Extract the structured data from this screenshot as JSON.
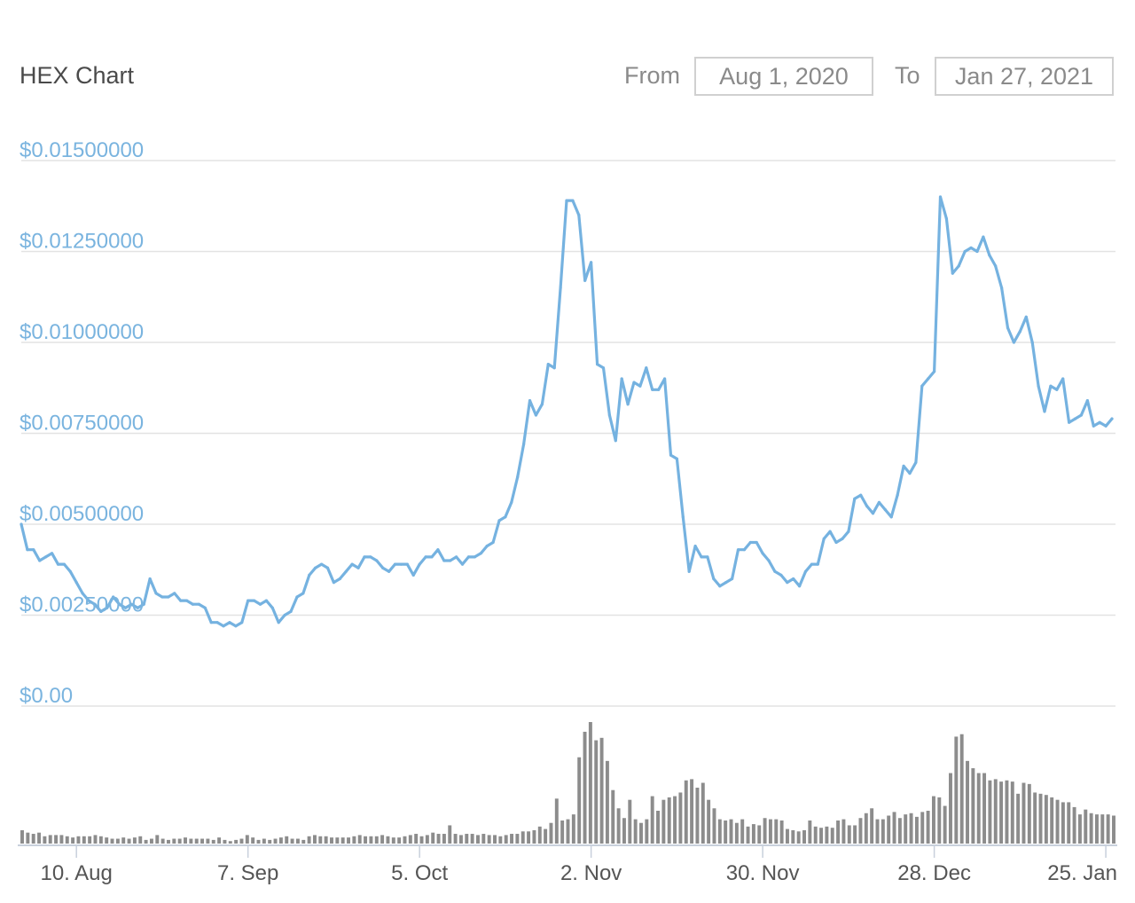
{
  "header": {
    "title": "HEX Chart",
    "from_label": "From",
    "from_value": "Aug 1, 2020",
    "to_label": "To",
    "to_value": "Jan 27, 2021"
  },
  "colors": {
    "price_line": "#75b2e0",
    "volume_bar": "#8c8c8c",
    "grid": "#e3e3e3",
    "y_label": "#7ab4df",
    "x_label": "#555555"
  },
  "chart_data": {
    "type": "line",
    "title": "HEX Chart",
    "ylim": [
      0,
      0.015
    ],
    "y_ticks": [
      0,
      0.0025,
      0.005,
      0.0075,
      0.01,
      0.0125,
      0.015
    ],
    "y_tick_labels": [
      "$0.00",
      "$0.00250000",
      "$0.00500000",
      "$0.00750000",
      "$0.01000000",
      "$0.01250000",
      "$0.01500000"
    ],
    "x_range": [
      "2020-08-01",
      "2021-01-27"
    ],
    "x_ticks": [
      "2020-08-10",
      "2020-09-07",
      "2020-10-05",
      "2020-11-02",
      "2020-11-30",
      "2020-12-28",
      "2021-01-25"
    ],
    "x_tick_labels": [
      "10. Aug",
      "7. Sep",
      "5. Oct",
      "2. Nov",
      "30. Nov",
      "28. Dec",
      "25. Jan"
    ],
    "grid": true,
    "series": [
      {
        "type": "line",
        "points": [
          [
            "2020-08-01",
            0.005
          ],
          [
            "2020-08-02",
            0.0043
          ],
          [
            "2020-08-03",
            0.0043
          ],
          [
            "2020-08-04",
            0.004
          ],
          [
            "2020-08-05",
            0.0041
          ],
          [
            "2020-08-06",
            0.0042
          ],
          [
            "2020-08-07",
            0.0039
          ],
          [
            "2020-08-08",
            0.0039
          ],
          [
            "2020-08-09",
            0.0037
          ],
          [
            "2020-08-10",
            0.0034
          ],
          [
            "2020-08-11",
            0.0031
          ],
          [
            "2020-08-12",
            0.0029
          ],
          [
            "2020-08-13",
            0.0028
          ],
          [
            "2020-08-14",
            0.0026
          ],
          [
            "2020-08-15",
            0.0027
          ],
          [
            "2020-08-16",
            0.003
          ],
          [
            "2020-08-17",
            0.0028
          ],
          [
            "2020-08-18",
            0.0027
          ],
          [
            "2020-08-19",
            0.0028
          ],
          [
            "2020-08-20",
            0.0027
          ],
          [
            "2020-08-21",
            0.0028
          ],
          [
            "2020-08-22",
            0.0035
          ],
          [
            "2020-08-23",
            0.0031
          ],
          [
            "2020-08-24",
            0.003
          ],
          [
            "2020-08-25",
            0.003
          ],
          [
            "2020-08-26",
            0.0031
          ],
          [
            "2020-08-27",
            0.0029
          ],
          [
            "2020-08-28",
            0.0029
          ],
          [
            "2020-08-29",
            0.0028
          ],
          [
            "2020-08-30",
            0.0028
          ],
          [
            "2020-08-31",
            0.0027
          ],
          [
            "2020-09-01",
            0.0023
          ],
          [
            "2020-09-02",
            0.0023
          ],
          [
            "2020-09-03",
            0.0022
          ],
          [
            "2020-09-04",
            0.0023
          ],
          [
            "2020-09-05",
            0.0022
          ],
          [
            "2020-09-06",
            0.0023
          ],
          [
            "2020-09-07",
            0.0029
          ],
          [
            "2020-09-08",
            0.0029
          ],
          [
            "2020-09-09",
            0.0028
          ],
          [
            "2020-09-10",
            0.0029
          ],
          [
            "2020-09-11",
            0.0027
          ],
          [
            "2020-09-12",
            0.0023
          ],
          [
            "2020-09-13",
            0.0025
          ],
          [
            "2020-09-14",
            0.0026
          ],
          [
            "2020-09-15",
            0.003
          ],
          [
            "2020-09-16",
            0.0031
          ],
          [
            "2020-09-17",
            0.0036
          ],
          [
            "2020-09-18",
            0.0038
          ],
          [
            "2020-09-19",
            0.0039
          ],
          [
            "2020-09-20",
            0.0038
          ],
          [
            "2020-09-21",
            0.0034
          ],
          [
            "2020-09-22",
            0.0035
          ],
          [
            "2020-09-23",
            0.0037
          ],
          [
            "2020-09-24",
            0.0039
          ],
          [
            "2020-09-25",
            0.0038
          ],
          [
            "2020-09-26",
            0.0041
          ],
          [
            "2020-09-27",
            0.0041
          ],
          [
            "2020-09-28",
            0.004
          ],
          [
            "2020-09-29",
            0.0038
          ],
          [
            "2020-09-30",
            0.0037
          ],
          [
            "2020-10-01",
            0.0039
          ],
          [
            "2020-10-02",
            0.0039
          ],
          [
            "2020-10-03",
            0.0039
          ],
          [
            "2020-10-04",
            0.0036
          ],
          [
            "2020-10-05",
            0.0039
          ],
          [
            "2020-10-06",
            0.0041
          ],
          [
            "2020-10-07",
            0.0041
          ],
          [
            "2020-10-08",
            0.0043
          ],
          [
            "2020-10-09",
            0.004
          ],
          [
            "2020-10-10",
            0.004
          ],
          [
            "2020-10-11",
            0.0041
          ],
          [
            "2020-10-12",
            0.0039
          ],
          [
            "2020-10-13",
            0.0041
          ],
          [
            "2020-10-14",
            0.0041
          ],
          [
            "2020-10-15",
            0.0042
          ],
          [
            "2020-10-16",
            0.0044
          ],
          [
            "2020-10-17",
            0.0045
          ],
          [
            "2020-10-18",
            0.0051
          ],
          [
            "2020-10-19",
            0.0052
          ],
          [
            "2020-10-20",
            0.0056
          ],
          [
            "2020-10-21",
            0.0063
          ],
          [
            "2020-10-22",
            0.0072
          ],
          [
            "2020-10-23",
            0.0084
          ],
          [
            "2020-10-24",
            0.008
          ],
          [
            "2020-10-25",
            0.0083
          ],
          [
            "2020-10-26",
            0.0094
          ],
          [
            "2020-10-27",
            0.0093
          ],
          [
            "2020-10-28",
            0.0115
          ],
          [
            "2020-10-29",
            0.0139
          ],
          [
            "2020-10-30",
            0.0139
          ],
          [
            "2020-10-31",
            0.0135
          ],
          [
            "2020-11-01",
            0.0117
          ],
          [
            "2020-11-02",
            0.0122
          ],
          [
            "2020-11-03",
            0.0094
          ],
          [
            "2020-11-04",
            0.0093
          ],
          [
            "2020-11-05",
            0.008
          ],
          [
            "2020-11-06",
            0.0073
          ],
          [
            "2020-11-07",
            0.009
          ],
          [
            "2020-11-08",
            0.0083
          ],
          [
            "2020-11-09",
            0.0089
          ],
          [
            "2020-11-10",
            0.0088
          ],
          [
            "2020-11-11",
            0.0093
          ],
          [
            "2020-11-12",
            0.0087
          ],
          [
            "2020-11-13",
            0.0087
          ],
          [
            "2020-11-14",
            0.009
          ],
          [
            "2020-11-15",
            0.0069
          ],
          [
            "2020-11-16",
            0.0068
          ],
          [
            "2020-11-17",
            0.0052
          ],
          [
            "2020-11-18",
            0.0037
          ],
          [
            "2020-11-19",
            0.0044
          ],
          [
            "2020-11-20",
            0.0041
          ],
          [
            "2020-11-21",
            0.0041
          ],
          [
            "2020-11-22",
            0.0035
          ],
          [
            "2020-11-23",
            0.0033
          ],
          [
            "2020-11-24",
            0.0034
          ],
          [
            "2020-11-25",
            0.0035
          ],
          [
            "2020-11-26",
            0.0043
          ],
          [
            "2020-11-27",
            0.0043
          ],
          [
            "2020-11-28",
            0.0045
          ],
          [
            "2020-11-29",
            0.0045
          ],
          [
            "2020-11-30",
            0.0042
          ],
          [
            "2020-12-01",
            0.004
          ],
          [
            "2020-12-02",
            0.0037
          ],
          [
            "2020-12-03",
            0.0036
          ],
          [
            "2020-12-04",
            0.0034
          ],
          [
            "2020-12-05",
            0.0035
          ],
          [
            "2020-12-06",
            0.0033
          ],
          [
            "2020-12-07",
            0.0037
          ],
          [
            "2020-12-08",
            0.0039
          ],
          [
            "2020-12-09",
            0.0039
          ],
          [
            "2020-12-10",
            0.0046
          ],
          [
            "2020-12-11",
            0.0048
          ],
          [
            "2020-12-12",
            0.0045
          ],
          [
            "2020-12-13",
            0.0046
          ],
          [
            "2020-12-14",
            0.0048
          ],
          [
            "2020-12-15",
            0.0057
          ],
          [
            "2020-12-16",
            0.0058
          ],
          [
            "2020-12-17",
            0.0055
          ],
          [
            "2020-12-18",
            0.0053
          ],
          [
            "2020-12-19",
            0.0056
          ],
          [
            "2020-12-20",
            0.0054
          ],
          [
            "2020-12-21",
            0.0052
          ],
          [
            "2020-12-22",
            0.0058
          ],
          [
            "2020-12-23",
            0.0066
          ],
          [
            "2020-12-24",
            0.0064
          ],
          [
            "2020-12-25",
            0.0067
          ],
          [
            "2020-12-26",
            0.0088
          ],
          [
            "2020-12-27",
            0.009
          ],
          [
            "2020-12-28",
            0.0092
          ],
          [
            "2020-12-29",
            0.014
          ],
          [
            "2020-12-30",
            0.0134
          ],
          [
            "2020-12-31",
            0.0119
          ],
          [
            "2021-01-01",
            0.0121
          ],
          [
            "2021-01-02",
            0.0125
          ],
          [
            "2021-01-03",
            0.0126
          ],
          [
            "2021-01-04",
            0.0125
          ],
          [
            "2021-01-05",
            0.0129
          ],
          [
            "2021-01-06",
            0.0124
          ],
          [
            "2021-01-07",
            0.0121
          ],
          [
            "2021-01-08",
            0.0115
          ],
          [
            "2021-01-09",
            0.0104
          ],
          [
            "2021-01-10",
            0.01
          ],
          [
            "2021-01-11",
            0.0103
          ],
          [
            "2021-01-12",
            0.0107
          ],
          [
            "2021-01-13",
            0.01
          ],
          [
            "2021-01-14",
            0.0088
          ],
          [
            "2021-01-15",
            0.0081
          ],
          [
            "2021-01-16",
            0.0088
          ],
          [
            "2021-01-17",
            0.0087
          ],
          [
            "2021-01-18",
            0.009
          ],
          [
            "2021-01-19",
            0.0078
          ],
          [
            "2021-01-20",
            0.0079
          ],
          [
            "2021-01-21",
            0.008
          ],
          [
            "2021-01-22",
            0.0084
          ],
          [
            "2021-01-23",
            0.0077
          ],
          [
            "2021-01-24",
            0.0078
          ],
          [
            "2021-01-25",
            0.0077
          ],
          [
            "2021-01-26",
            0.0079
          ]
        ]
      },
      {
        "type": "bar",
        "scale": "relative (no volume axis printed, peak = 1)",
        "values": [
          0.11,
          0.09,
          0.08,
          0.09,
          0.06,
          0.07,
          0.07,
          0.07,
          0.06,
          0.05,
          0.06,
          0.06,
          0.06,
          0.07,
          0.06,
          0.05,
          0.04,
          0.04,
          0.05,
          0.04,
          0.05,
          0.06,
          0.03,
          0.04,
          0.07,
          0.04,
          0.03,
          0.04,
          0.04,
          0.05,
          0.04,
          0.04,
          0.04,
          0.04,
          0.03,
          0.05,
          0.03,
          0.02,
          0.03,
          0.04,
          0.07,
          0.05,
          0.03,
          0.04,
          0.03,
          0.04,
          0.05,
          0.06,
          0.04,
          0.04,
          0.03,
          0.06,
          0.07,
          0.06,
          0.06,
          0.05,
          0.05,
          0.05,
          0.05,
          0.06,
          0.07,
          0.06,
          0.06,
          0.06,
          0.07,
          0.06,
          0.05,
          0.05,
          0.06,
          0.07,
          0.08,
          0.06,
          0.07,
          0.09,
          0.08,
          0.08,
          0.15,
          0.08,
          0.07,
          0.08,
          0.08,
          0.07,
          0.08,
          0.07,
          0.07,
          0.06,
          0.07,
          0.08,
          0.08,
          0.1,
          0.1,
          0.11,
          0.14,
          0.12,
          0.17,
          0.37,
          0.19,
          0.2,
          0.24,
          0.71,
          0.92,
          1.0,
          0.85,
          0.87,
          0.68,
          0.44,
          0.29,
          0.21,
          0.36,
          0.2,
          0.17,
          0.2,
          0.39,
          0.27,
          0.36,
          0.38,
          0.39,
          0.42,
          0.52,
          0.53,
          0.46,
          0.5,
          0.36,
          0.29,
          0.2,
          0.19,
          0.2,
          0.17,
          0.2,
          0.14,
          0.16,
          0.15,
          0.21,
          0.2,
          0.2,
          0.19,
          0.12,
          0.11,
          0.1,
          0.11,
          0.19,
          0.14,
          0.13,
          0.14,
          0.13,
          0.19,
          0.2,
          0.15,
          0.15,
          0.21,
          0.25,
          0.29,
          0.2,
          0.2,
          0.23,
          0.26,
          0.21,
          0.24,
          0.25,
          0.22,
          0.26,
          0.27,
          0.39,
          0.38,
          0.31,
          0.58,
          0.88,
          0.9,
          0.68,
          0.62,
          0.58,
          0.58,
          0.52,
          0.53,
          0.51,
          0.52,
          0.51,
          0.41,
          0.5,
          0.49,
          0.42,
          0.41,
          0.4,
          0.38,
          0.36,
          0.34,
          0.34,
          0.3,
          0.24,
          0.28,
          0.25,
          0.24,
          0.24,
          0.24,
          0.23
        ]
      }
    ]
  }
}
